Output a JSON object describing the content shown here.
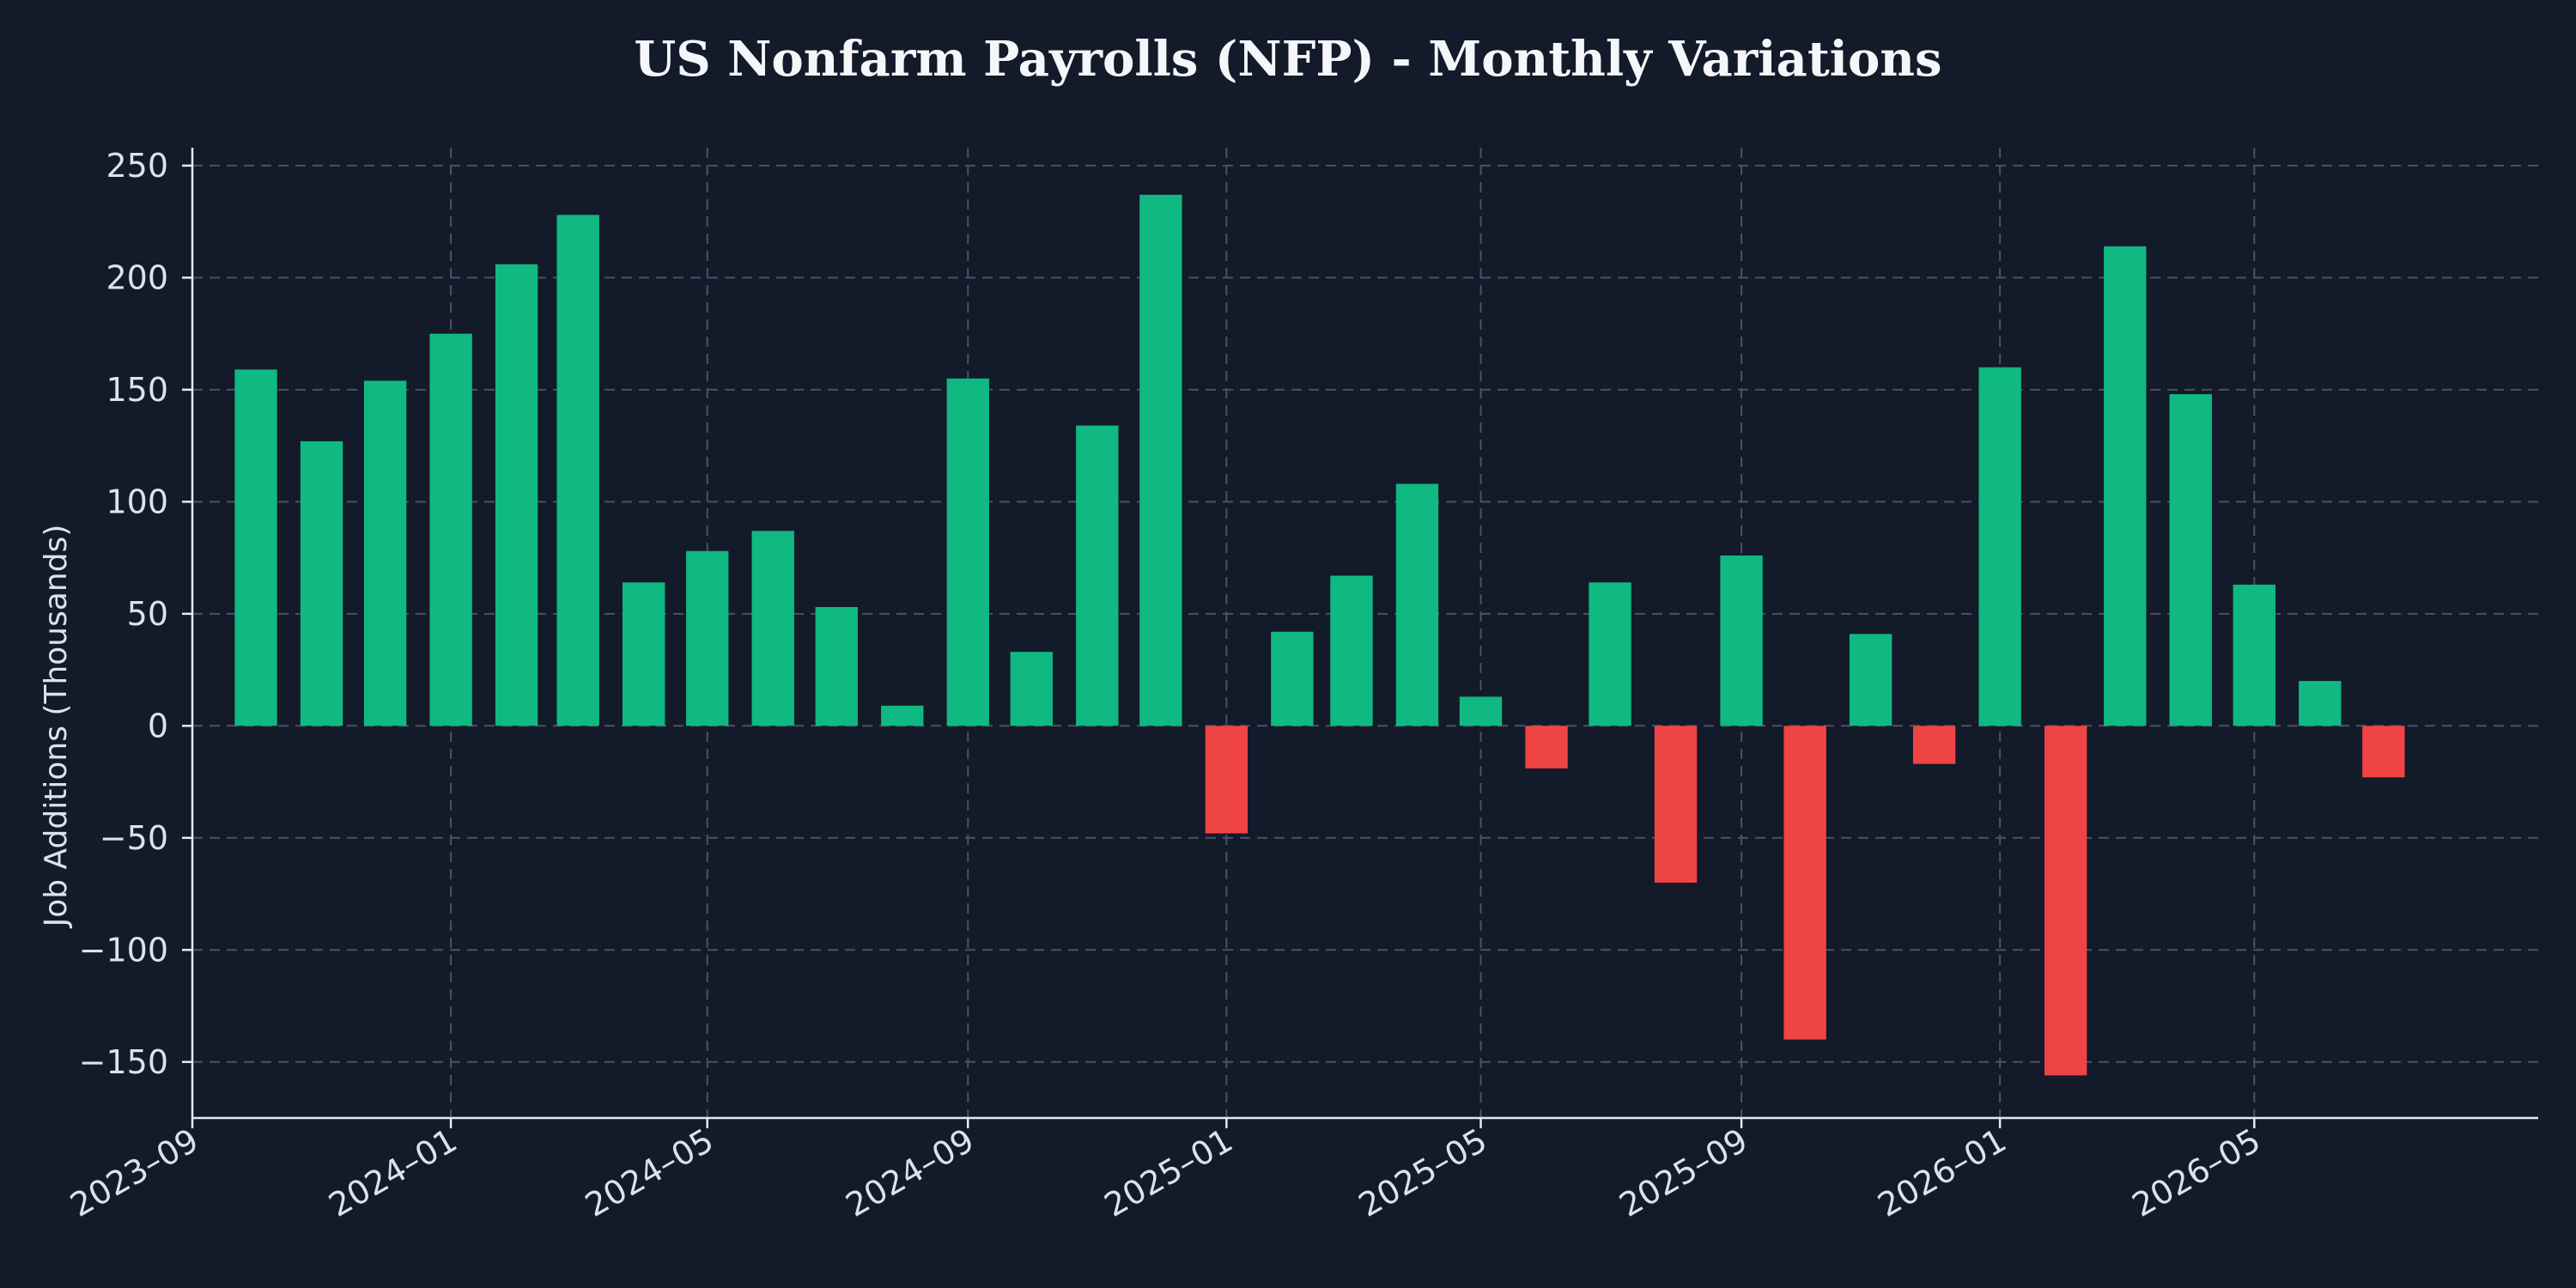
{
  "chart_data": {
    "type": "bar",
    "title": "US Nonfarm Payrolls (NFP) - Monthly Variations",
    "xlabel": "",
    "ylabel": "Job Additions (Thousands)",
    "ylim": [
      -175,
      258
    ],
    "xlim": [
      "2023-09-01",
      "2026-09-12"
    ],
    "yticks": [
      -150,
      -100,
      -50,
      0,
      50,
      100,
      150,
      200,
      250
    ],
    "xticks": [
      "2023-09",
      "2024-01",
      "2024-05",
      "2024-09",
      "2025-01",
      "2025-05",
      "2025-09",
      "2026-01",
      "2026-05"
    ],
    "grid": true,
    "colors": {
      "positive": "#10b981",
      "negative": "#ef4444"
    },
    "dates": [
      "2023-10",
      "2023-11",
      "2023-12",
      "2024-01",
      "2024-02",
      "2024-03",
      "2024-04",
      "2024-05",
      "2024-06",
      "2024-07",
      "2024-08",
      "2024-09",
      "2024-10",
      "2024-11",
      "2024-12",
      "2025-01",
      "2025-02",
      "2025-03",
      "2025-04",
      "2025-05",
      "2025-06",
      "2025-07",
      "2025-08",
      "2025-09",
      "2025-10",
      "2025-11",
      "2025-12",
      "2026-01",
      "2026-02",
      "2026-03",
      "2026-04",
      "2026-05",
      "2026-06",
      "2026-07",
      "2026-08"
    ],
    "values": [
      159,
      127,
      154,
      175,
      206,
      228,
      64,
      78,
      87,
      53,
      9,
      155,
      33,
      134,
      237,
      -48,
      42,
      67,
      108,
      13,
      -19,
      64,
      -70,
      76,
      -140,
      41,
      -17,
      160,
      -156,
      214,
      148,
      63,
      20,
      -23,
      null
    ]
  }
}
